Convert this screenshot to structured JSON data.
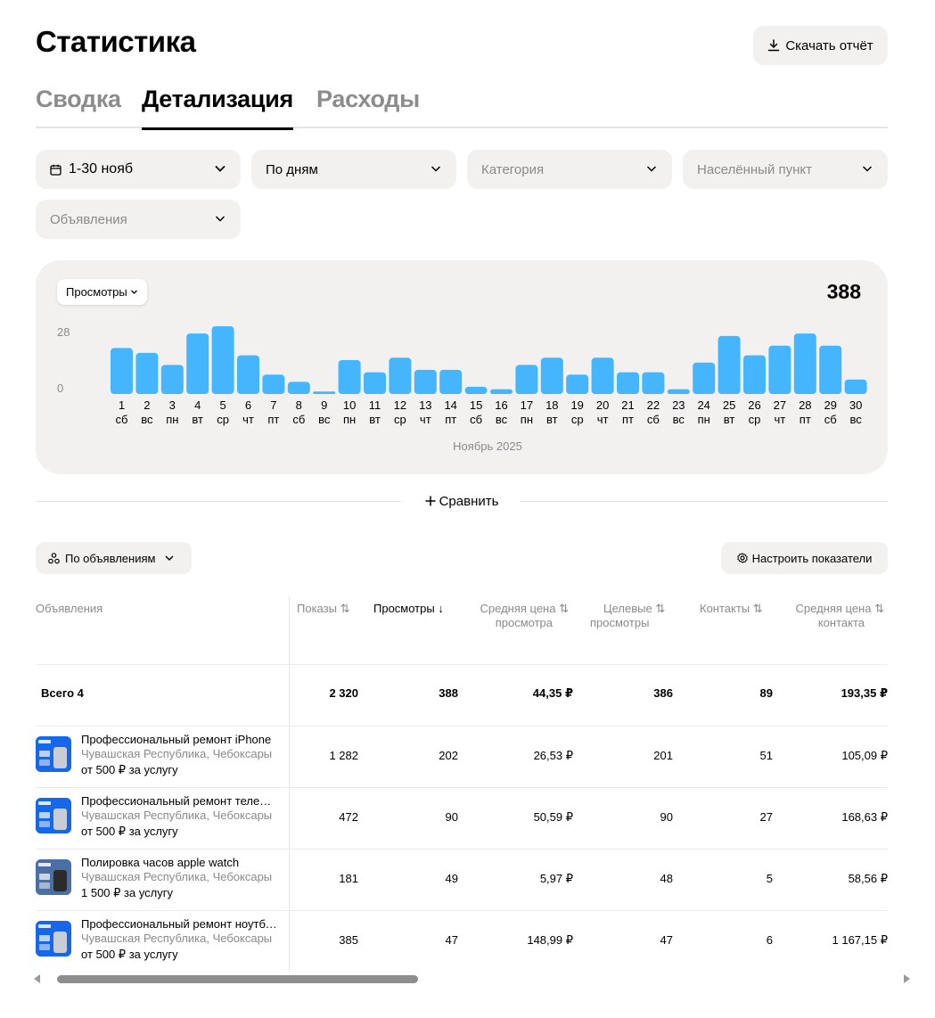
{
  "header": {
    "title": "Статистика",
    "download_label": "Скачать отчёт"
  },
  "tabs": [
    {
      "label": "Сводка",
      "active": false
    },
    {
      "label": "Детализация",
      "active": true
    },
    {
      "label": "Расходы",
      "active": false
    }
  ],
  "filters": {
    "period": "1-30 нояб",
    "grouping": "По дням",
    "category_placeholder": "Категория",
    "city_placeholder": "Населённый пункт",
    "ads_placeholder": "Объявления"
  },
  "chart": {
    "metric_label": "Просмотры",
    "total": "388",
    "month_label": "Ноябрь 2025",
    "y_tick_top": "28",
    "y_tick_bottom": "0",
    "bar_color": "#45b6fd"
  },
  "chart_data": {
    "type": "bar",
    "categories": [
      "1",
      "2",
      "3",
      "4",
      "5",
      "6",
      "7",
      "8",
      "9",
      "10",
      "11",
      "12",
      "13",
      "14",
      "15",
      "16",
      "17",
      "18",
      "19",
      "20",
      "21",
      "22",
      "23",
      "24",
      "25",
      "26",
      "27",
      "28",
      "29",
      "30"
    ],
    "weekdays": [
      "сб",
      "вс",
      "пн",
      "вт",
      "ср",
      "чт",
      "пт",
      "сб",
      "вс",
      "пн",
      "вт",
      "ср",
      "чт",
      "пт",
      "сб",
      "вс",
      "пн",
      "вт",
      "ср",
      "чт",
      "пт",
      "сб",
      "вс",
      "пн",
      "вт",
      "ср",
      "чт",
      "пт",
      "сб",
      "вс"
    ],
    "values": [
      19,
      17,
      12,
      25,
      28,
      16,
      8,
      5,
      1,
      14,
      9,
      15,
      10,
      10,
      3,
      2,
      12,
      15,
      8,
      15,
      9,
      9,
      2,
      13,
      24,
      16,
      20,
      25,
      20,
      6
    ],
    "ylim": [
      0,
      28
    ],
    "xlabel": "Ноябрь 2025",
    "grid": false
  },
  "compare_label": "Сравнить",
  "table_controls": {
    "group_label": "По объявлениям",
    "settings_label": "Настроить показатели"
  },
  "table": {
    "headers": {
      "ads": "Объявления",
      "impressions": "Показы",
      "views": "Просмотры",
      "avg_view_price_l1": "Средняя цена",
      "avg_view_price_l2": "просмотра",
      "target_views_l1": "Целевые",
      "target_views_l2": "просмотры",
      "contacts": "Контакты",
      "avg_contact_price_l1": "Средняя цена",
      "avg_contact_price_l2": "контакта"
    },
    "total": {
      "label": "Всего 4",
      "impressions": "2 320",
      "views": "388",
      "avg_view_price": "44,35 ₽",
      "target_views": "386",
      "contacts": "89",
      "avg_contact_price": "193,35 ₽"
    },
    "rows": [
      {
        "title": "Профессиональный ремонт iPhone",
        "location": "Чувашская Республика, Чебоксары",
        "price": "от 500 ₽ за услугу",
        "impressions": "1 282",
        "views": "202",
        "avg_view_price": "26,53 ₽",
        "target_views": "201",
        "contacts": "51",
        "avg_contact_price": "105,09 ₽"
      },
      {
        "title": "Профессиональный ремонт телефонов",
        "location": "Чувашская Республика, Чебоксары",
        "price": "от 500 ₽ за услугу",
        "impressions": "472",
        "views": "90",
        "avg_view_price": "50,59 ₽",
        "target_views": "90",
        "contacts": "27",
        "avg_contact_price": "168,63 ₽"
      },
      {
        "title": "Полировка часов apple watch",
        "location": "Чувашская Республика, Чебоксары",
        "price": "1 500 ₽ за услугу",
        "impressions": "181",
        "views": "49",
        "avg_view_price": "5,97 ₽",
        "target_views": "48",
        "contacts": "5",
        "avg_contact_price": "58,56 ₽"
      },
      {
        "title": "Профессиональный ремонт ноутбуков",
        "location": "Чувашская Республика, Чебоксары",
        "price": "от 500 ₽ за услугу",
        "impressions": "385",
        "views": "47",
        "avg_view_price": "148,99 ₽",
        "target_views": "47",
        "contacts": "6",
        "avg_contact_price": "1 167,15 ₽"
      }
    ]
  }
}
